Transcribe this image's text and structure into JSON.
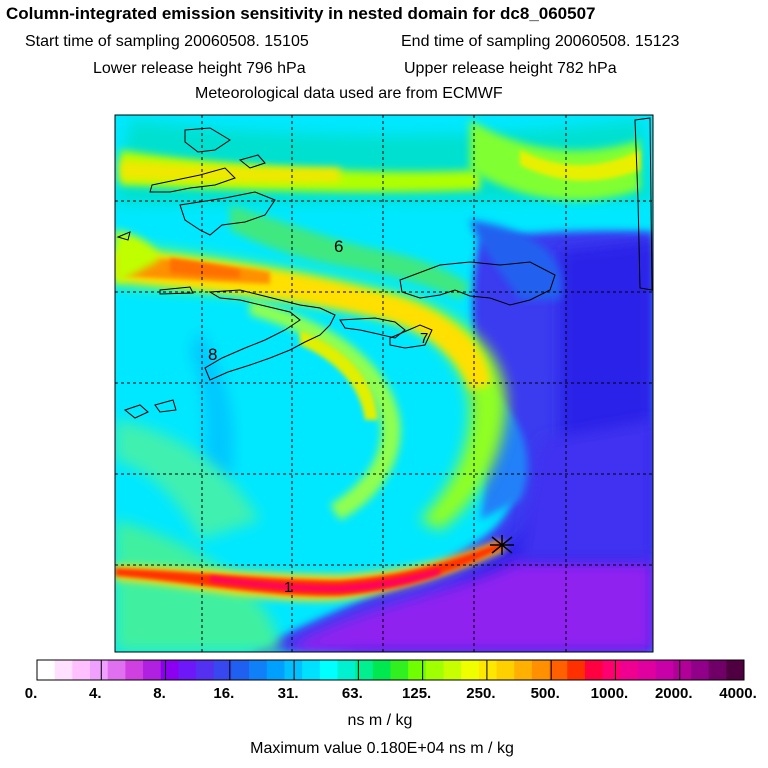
{
  "header": {
    "title": "Column-integrated emission sensitivity in nested domain for dc8_060507",
    "start_label": "Start time of sampling 20060508. 15105",
    "end_label": "End time of sampling 20060508. 15123",
    "lower_label": "Lower release height  796 hPa",
    "upper_label": "Upper release height  782 hPa",
    "met_label": "Meteorological data used are from ECMWF"
  },
  "map": {
    "contour_labels": [
      "6",
      "8",
      "7",
      "1"
    ],
    "colors": {
      "background_ocean": "#00e0e0",
      "frame": "#000000",
      "grid": "#000000"
    }
  },
  "chart_data": {
    "type": "heatmap",
    "title": "Column-integrated emission sensitivity in nested domain for dc8_060507",
    "units": "ns m / kg",
    "max_value_text": "Maximum value  0.180E+04 ns m / kg",
    "max_value": 1800,
    "colorbar_ticks": [
      "0.",
      "4.",
      "8.",
      "16.",
      "31.",
      "63.",
      "125.",
      "250.",
      "500.",
      "1000.",
      "2000.",
      "4000."
    ],
    "colorbar_colors": [
      "#ffffff",
      "#ffe0ff",
      "#ffc0ff",
      "#f0a0ff",
      "#e070f0",
      "#d040e0",
      "#b020e0",
      "#8c00f0",
      "#6c18f8",
      "#5430f0",
      "#3848f0",
      "#2060f0",
      "#1080f8",
      "#00a0ff",
      "#00c0ff",
      "#00e0ff",
      "#00ffff",
      "#00f0d0",
      "#00f090",
      "#00e850",
      "#30f020",
      "#70ff00",
      "#a0ff00",
      "#c8ff00",
      "#f0ff00",
      "#ffe800",
      "#ffd000",
      "#ffb000",
      "#ff9000",
      "#ff6000",
      "#ff3000",
      "#ff0040",
      "#ff0070",
      "#f00090",
      "#e000a0",
      "#c800a8",
      "#b00098",
      "#900088",
      "#700068",
      "#500040"
    ],
    "footer": {
      "units_label": "ns m / kg",
      "max_label": "Maximum value  0.180E+04 ns m / kg"
    }
  }
}
